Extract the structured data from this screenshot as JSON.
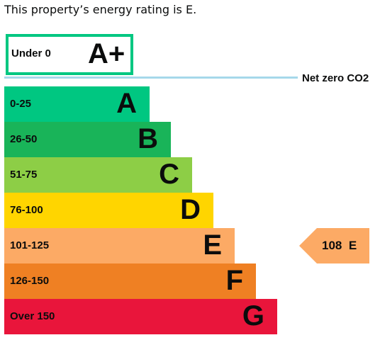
{
  "summary": "This property’s energy rating is E.",
  "netzero_label": "Net zero CO2",
  "chart_data": {
    "type": "bar",
    "top_band": {
      "letter": "A+",
      "range": "Under 0",
      "color": "#00c781"
    },
    "bands": [
      {
        "letter": "A",
        "range": "0-25",
        "color": "#00c781"
      },
      {
        "letter": "B",
        "range": "26-50",
        "color": "#19b459"
      },
      {
        "letter": "C",
        "range": "51-75",
        "color": "#8dce46"
      },
      {
        "letter": "D",
        "range": "76-100",
        "color": "#ffd500"
      },
      {
        "letter": "E",
        "range": "101-125",
        "color": "#fcaa65"
      },
      {
        "letter": "F",
        "range": "126-150",
        "color": "#ef8023"
      },
      {
        "letter": "G",
        "range": "Over 150",
        "color": "#e9153b"
      }
    ],
    "current": {
      "value": 108,
      "letter": "E",
      "band_index": 4
    }
  }
}
